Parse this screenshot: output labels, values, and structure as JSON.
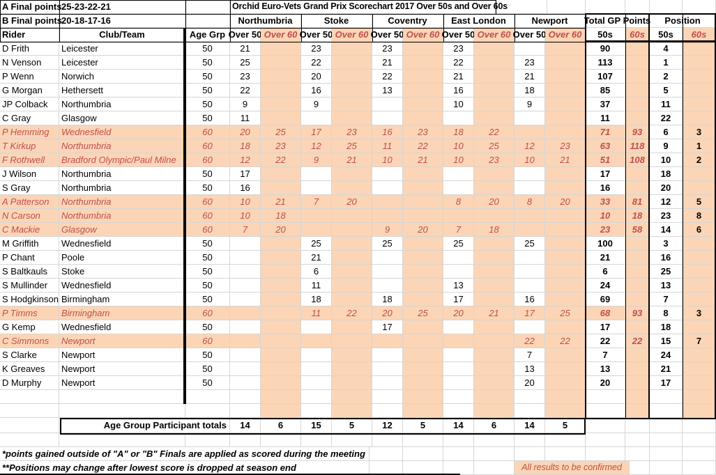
{
  "meta": {
    "a_final_label": "A Final points",
    "a_final_points": "25-23-22-21",
    "b_final_label": "B Final points",
    "b_final_points": "20-18-17-16",
    "title": "Orchid Euro-Vets Grand Prix Scorechart 2017 Over 50s and Over 60s"
  },
  "columns": {
    "rider": "Rider",
    "club": "Club/Team",
    "age": "Age Grp",
    "over50": "Over 50",
    "over60": "Over 60",
    "venues": [
      "Northumbria",
      "Stoke",
      "Coventry",
      "East London",
      "Newport"
    ],
    "total": "Total GP Points",
    "position": "Position",
    "sub50": "50s",
    "sub60": "60s"
  },
  "rows": [
    {
      "rider": "D Frith",
      "club": "Leicester",
      "age": "50",
      "scores": [
        "21",
        "",
        "23",
        "",
        "23",
        "",
        "23",
        "",
        "",
        ""
      ],
      "t50": "90",
      "t60": "",
      "p50": "4",
      "p60": "",
      "highlight": false
    },
    {
      "rider": "N Venson",
      "club": "Leicester",
      "age": "50",
      "scores": [
        "25",
        "",
        "22",
        "",
        "21",
        "",
        "22",
        "",
        "23",
        ""
      ],
      "t50": "113",
      "t60": "",
      "p50": "1",
      "p60": "",
      "highlight": false
    },
    {
      "rider": "P Wenn",
      "club": "Norwich",
      "age": "50",
      "scores": [
        "23",
        "",
        "20",
        "",
        "22",
        "",
        "21",
        "",
        "21",
        ""
      ],
      "t50": "107",
      "t60": "",
      "p50": "2",
      "p60": "",
      "highlight": false
    },
    {
      "rider": "G Morgan",
      "club": "Hethersett",
      "age": "50",
      "scores": [
        "22",
        "",
        "16",
        "",
        "13",
        "",
        "16",
        "",
        "18",
        ""
      ],
      "t50": "85",
      "t60": "",
      "p50": "5",
      "p60": "",
      "highlight": false
    },
    {
      "rider": "JP Colback",
      "club": "Northumbria",
      "age": "50",
      "scores": [
        "9",
        "",
        "9",
        "",
        "",
        "",
        "10",
        "",
        "9",
        ""
      ],
      "t50": "37",
      "t60": "",
      "p50": "11",
      "p60": "",
      "highlight": false
    },
    {
      "rider": "C Gray",
      "club": "Glasgow",
      "age": "50",
      "scores": [
        "11",
        "",
        "",
        "",
        "",
        "",
        "",
        "",
        "",
        ""
      ],
      "t50": "11",
      "t60": "",
      "p50": "22",
      "p60": "",
      "highlight": false
    },
    {
      "rider": "P Hemming",
      "club": "Wednesfield",
      "age": "60",
      "scores": [
        "20",
        "25",
        "17",
        "23",
        "16",
        "23",
        "18",
        "22",
        "",
        ""
      ],
      "t50": "71",
      "t60": "93",
      "p50": "6",
      "p60": "3",
      "highlight": true
    },
    {
      "rider": "T Kirkup",
      "club": "Northumbria",
      "age": "60",
      "scores": [
        "18",
        "23",
        "12",
        "25",
        "11",
        "22",
        "10",
        "25",
        "12",
        "23"
      ],
      "t50": "63",
      "t60": "118",
      "p50": "9",
      "p60": "1",
      "highlight": true
    },
    {
      "rider": "F Rothwell",
      "club": "Bradford Olympic/Paul Milne",
      "age": "60",
      "scores": [
        "12",
        "22",
        "9",
        "21",
        "10",
        "21",
        "10",
        "23",
        "10",
        "21"
      ],
      "t50": "51",
      "t60": "108",
      "p50": "10",
      "p60": "2",
      "highlight": true
    },
    {
      "rider": "J Wilson",
      "club": "Northumbria",
      "age": "50",
      "scores": [
        "17",
        "",
        "",
        "",
        "",
        "",
        "",
        "",
        "",
        ""
      ],
      "t50": "17",
      "t60": "",
      "p50": "18",
      "p60": "",
      "highlight": false
    },
    {
      "rider": "S Gray",
      "club": "Northumbria",
      "age": "50",
      "scores": [
        "16",
        "",
        "",
        "",
        "",
        "",
        "",
        "",
        "",
        ""
      ],
      "t50": "16",
      "t60": "",
      "p50": "20",
      "p60": "",
      "highlight": false
    },
    {
      "rider": "A Patterson",
      "club": "Northumbria",
      "age": "60",
      "scores": [
        "10",
        "21",
        "7",
        "20",
        "",
        "",
        "8",
        "20",
        "8",
        "20"
      ],
      "t50": "33",
      "t60": "81",
      "p50": "12",
      "p60": "5",
      "highlight": true
    },
    {
      "rider": "N Carson",
      "club": "Northumbria",
      "age": "60",
      "scores": [
        "10",
        "18",
        "",
        "",
        "",
        "",
        "",
        "",
        "",
        ""
      ],
      "t50": "10",
      "t60": "18",
      "p50": "23",
      "p60": "8",
      "highlight": true
    },
    {
      "rider": "C Mackie",
      "club": "Glasgow",
      "age": "60",
      "scores": [
        "7",
        "20",
        "",
        "",
        "9",
        "20",
        "7",
        "18",
        "",
        ""
      ],
      "t50": "23",
      "t60": "58",
      "p50": "14",
      "p60": "6",
      "highlight": true
    },
    {
      "rider": "M Griffith",
      "club": "Wednesfield",
      "age": "50",
      "scores": [
        "",
        "",
        "25",
        "",
        "25",
        "",
        "25",
        "",
        "25",
        ""
      ],
      "t50": "100",
      "t60": "",
      "p50": "3",
      "p60": "",
      "highlight": false
    },
    {
      "rider": "P Chant",
      "club": "Poole",
      "age": "50",
      "scores": [
        "",
        "",
        "21",
        "",
        "",
        "",
        "",
        "",
        "",
        ""
      ],
      "t50": "21",
      "t60": "",
      "p50": "16",
      "p60": "",
      "highlight": false
    },
    {
      "rider": "S Baltkauls",
      "club": "Stoke",
      "age": "50",
      "scores": [
        "",
        "",
        "6",
        "",
        "",
        "",
        "",
        "",
        "",
        ""
      ],
      "t50": "6",
      "t60": "",
      "p50": "25",
      "p60": "",
      "highlight": false
    },
    {
      "rider": "S Mullinder",
      "club": "Wednesfield",
      "age": "50",
      "scores": [
        "",
        "",
        "11",
        "",
        "",
        "",
        "13",
        "",
        "",
        ""
      ],
      "t50": "24",
      "t60": "",
      "p50": "13",
      "p60": "",
      "highlight": false
    },
    {
      "rider": "S Hodgkinson",
      "club": "Birmingham",
      "age": "50",
      "scores": [
        "",
        "",
        "18",
        "",
        "18",
        "",
        "17",
        "",
        "16",
        ""
      ],
      "t50": "69",
      "t60": "",
      "p50": "7",
      "p60": "",
      "highlight": false
    },
    {
      "rider": "P Timms",
      "club": "Birmingham",
      "age": "60",
      "scores": [
        "",
        "",
        "11",
        "22",
        "20",
        "25",
        "20",
        "21",
        "17",
        "25"
      ],
      "t50": "68",
      "t60": "93",
      "p50": "8",
      "p60": "3",
      "highlight": true
    },
    {
      "rider": "G Kemp",
      "club": "Wednesfield",
      "age": "50",
      "scores": [
        "",
        "",
        "",
        "",
        "17",
        "",
        "",
        "",
        "",
        ""
      ],
      "t50": "17",
      "t60": "",
      "p50": "18",
      "p60": "",
      "highlight": false
    },
    {
      "rider": "C Simmons",
      "club": "Newport",
      "age": "60",
      "scores": [
        "",
        "",
        "",
        "",
        "",
        "",
        "",
        "",
        "22",
        "22"
      ],
      "t50": "22",
      "t60": "22",
      "p50": "15",
      "p60": "7",
      "highlight": true,
      "t50_plain": true
    },
    {
      "rider": "S Clarke",
      "club": "Newport",
      "age": "50",
      "scores": [
        "",
        "",
        "",
        "",
        "",
        "",
        "",
        "",
        "7",
        ""
      ],
      "t50": "7",
      "t60": "",
      "p50": "24",
      "p60": "",
      "highlight": false
    },
    {
      "rider": "K Greaves",
      "club": "Newport",
      "age": "50",
      "scores": [
        "",
        "",
        "",
        "",
        "",
        "",
        "",
        "",
        "13",
        ""
      ],
      "t50": "13",
      "t60": "",
      "p50": "21",
      "p60": "",
      "highlight": false
    },
    {
      "rider": "D Murphy",
      "club": "Newport",
      "age": "50",
      "scores": [
        "",
        "",
        "",
        "",
        "",
        "",
        "",
        "",
        "20",
        ""
      ],
      "t50": "20",
      "t60": "",
      "p50": "17",
      "p60": "",
      "highlight": false
    }
  ],
  "totals": {
    "label": "Age Group Participant totals",
    "values": [
      14,
      6,
      15,
      5,
      12,
      5,
      14,
      6,
      14,
      5
    ]
  },
  "footnotes": {
    "note1": "*points gained outside of \"A\" or \"B\" Finals are applied as scored during the meeting",
    "note2": "**Positions may change after lowest score is dropped at season end",
    "confirm": "All results to be confirmed"
  },
  "colors": {
    "orange": "#FBD5B5",
    "red": "#C0504D"
  }
}
